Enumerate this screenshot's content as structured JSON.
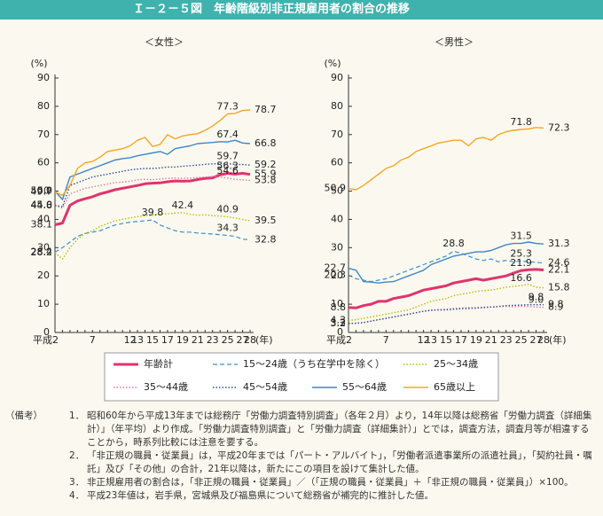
{
  "title": "Ｉ－２－５図　年齢階級別非正規雇用者の割合の推移",
  "chart_data": [
    {
      "type": "line",
      "title": "＜女性＞",
      "ylabel": "(%)",
      "xlabel": "(年)",
      "ylim": [
        0,
        90
      ],
      "yticks": [
        0,
        10,
        20,
        30,
        40,
        50,
        60,
        70,
        80,
        90
      ],
      "grid": false,
      "categories": [
        "平成2",
        null,
        null,
        null,
        null,
        "7",
        null,
        null,
        null,
        null,
        "12",
        "13",
        null,
        "15",
        null,
        "17",
        null,
        "19",
        null,
        "21",
        null,
        "23",
        null,
        "25",
        null,
        "27",
        "28"
      ],
      "series": [
        {
          "name": "年齢計",
          "color": "#e0336e",
          "style": "bold",
          "values": [
            38.1,
            38.7,
            45.0,
            46.5,
            47.3,
            48.0,
            49.0,
            49.7,
            50.5,
            51.0,
            51.5,
            52.0,
            52.6,
            52.8,
            52.9,
            53.3,
            53.6,
            53.5,
            53.6,
            54.1,
            54.5,
            54.7,
            55.8,
            56.3,
            56.0,
            56.3,
            55.9
          ],
          "value_labels": [
            "38.1",
            null,
            null,
            null,
            null,
            null,
            null,
            null,
            null,
            null,
            null,
            null,
            null,
            null,
            null,
            null,
            null,
            null,
            null,
            null,
            null,
            null,
            null,
            "56.3",
            null,
            null,
            "55.9"
          ]
        },
        {
          "name": "15～24歳（うち在学中を除く）",
          "color": "#3a8fd0",
          "style": "dashed",
          "values": [
            28.4,
            30,
            32,
            34,
            35,
            35.5,
            36,
            37,
            38,
            38.5,
            39,
            39.3,
            39.5,
            39.8,
            38,
            37,
            36,
            35.5,
            35.5,
            35.2,
            35,
            34.8,
            34.6,
            34.3,
            34,
            33,
            32.8
          ],
          "value_labels": [
            "28.4",
            null,
            null,
            null,
            null,
            null,
            null,
            null,
            null,
            null,
            null,
            null,
            null,
            "39.8",
            null,
            null,
            null,
            null,
            null,
            null,
            null,
            null,
            null,
            "34.3",
            null,
            null,
            "32.8"
          ]
        },
        {
          "name": "25～34歳",
          "color": "#b3c000",
          "style": "dotted",
          "values": [
            28.2,
            26,
            30,
            33,
            35,
            36,
            37.5,
            38.5,
            39.5,
            40,
            40.5,
            41,
            41.3,
            41.5,
            41.8,
            42,
            42.2,
            42.4,
            41.8,
            41.5,
            41.6,
            41.3,
            41.2,
            40.9,
            40.5,
            40,
            39.5
          ],
          "value_labels": [
            "28.2",
            null,
            null,
            null,
            null,
            null,
            null,
            null,
            null,
            null,
            null,
            null,
            null,
            null,
            null,
            null,
            null,
            "42.4",
            null,
            null,
            null,
            null,
            null,
            "40.9",
            null,
            null,
            "39.5"
          ]
        },
        {
          "name": "35～44歳",
          "color": "#e77aa0",
          "style": "dotted",
          "values": [
            44.8,
            44,
            49,
            50,
            51,
            51.5,
            52,
            52.5,
            53,
            53.2,
            53.5,
            54,
            54.2,
            54,
            54.3,
            54.5,
            54.6,
            54.5,
            54.6,
            54.8,
            55,
            55.2,
            55,
            54.6,
            54.2,
            54,
            53.8
          ],
          "value_labels": [
            "44.8",
            null,
            null,
            null,
            null,
            null,
            null,
            null,
            null,
            null,
            null,
            null,
            null,
            null,
            null,
            null,
            null,
            null,
            null,
            null,
            null,
            null,
            null,
            "54.6",
            null,
            null,
            "53.8"
          ]
        },
        {
          "name": "45～54歳",
          "color": "#2b4c9b",
          "style": "dotted",
          "values": [
            45.0,
            44.5,
            52,
            53,
            54,
            55,
            55.5,
            56,
            56.5,
            57,
            57.5,
            57.8,
            58,
            58,
            58.2,
            58.5,
            58.5,
            58.8,
            59,
            59.2,
            59.5,
            59.6,
            59.8,
            59.7,
            59.5,
            59.4,
            59.2
          ],
          "value_labels": [
            "45.0",
            null,
            null,
            null,
            null,
            null,
            null,
            null,
            null,
            null,
            null,
            null,
            null,
            null,
            null,
            null,
            null,
            null,
            null,
            null,
            null,
            null,
            null,
            "59.7",
            null,
            null,
            "59.2"
          ]
        },
        {
          "name": "55～64歳",
          "color": "#3f86c9",
          "style": "solid",
          "values": [
            50.0,
            47,
            55,
            56,
            57,
            58,
            59,
            60,
            61,
            61.5,
            61.8,
            62.5,
            63,
            63.5,
            64,
            63,
            65,
            65.5,
            66,
            66.8,
            67,
            67.2,
            67.5,
            67.4,
            68,
            67,
            66.8
          ],
          "value_labels": [
            "50.0",
            null,
            null,
            null,
            null,
            null,
            null,
            null,
            null,
            null,
            null,
            null,
            null,
            null,
            null,
            null,
            null,
            null,
            null,
            null,
            null,
            null,
            null,
            "67.4",
            null,
            null,
            "66.8"
          ]
        },
        {
          "name": "65歳以上",
          "color": "#f5a623",
          "style": "solid",
          "values": [
            49.7,
            48.5,
            52,
            58,
            60,
            60.5,
            62,
            64,
            64.5,
            65,
            66,
            68,
            69,
            65.8,
            66.5,
            70,
            68.5,
            69.5,
            70,
            70.3,
            71.5,
            73,
            75,
            77.3,
            77.5,
            78.5,
            78.7
          ],
          "value_labels": [
            "49.7",
            null,
            null,
            null,
            null,
            null,
            null,
            null,
            null,
            null,
            null,
            null,
            null,
            null,
            null,
            null,
            null,
            null,
            null,
            null,
            null,
            null,
            null,
            "77.3",
            null,
            null,
            "78.7"
          ]
        }
      ]
    },
    {
      "type": "line",
      "title": "＜男性＞",
      "ylabel": "(%)",
      "xlabel": "(年)",
      "ylim": [
        0,
        90
      ],
      "yticks": [
        0,
        10,
        20,
        30,
        40,
        50,
        60,
        70,
        80,
        90
      ],
      "grid": false,
      "categories": [
        "平成2",
        null,
        null,
        null,
        null,
        "7",
        null,
        null,
        null,
        null,
        "12",
        "13",
        null,
        "15",
        null,
        "17",
        null,
        "19",
        null,
        "21",
        null,
        "23",
        null,
        "25",
        null,
        "27",
        "28"
      ],
      "series": [
        {
          "color": "#e0336e",
          "style": "bold",
          "values": [
            8.8,
            8.7,
            9.5,
            10,
            11,
            11,
            12,
            12.5,
            13,
            14,
            15,
            15.5,
            16,
            16.5,
            17.5,
            18,
            18.5,
            19,
            18.5,
            19,
            19.5,
            20,
            21,
            21.9,
            22.2,
            22.3,
            22.1
          ],
          "value_labels": [
            "8.8",
            null,
            null,
            null,
            null,
            null,
            null,
            null,
            null,
            null,
            null,
            null,
            null,
            null,
            null,
            null,
            null,
            null,
            null,
            null,
            null,
            null,
            null,
            "21.9",
            null,
            null,
            "22.1"
          ]
        },
        {
          "color": "#3a8fd0",
          "style": "dashed",
          "values": [
            20.3,
            19,
            18.5,
            18,
            18.5,
            19,
            20,
            21,
            22,
            23,
            24,
            25,
            26,
            27,
            28.8,
            28,
            27,
            26,
            25.5,
            26,
            25,
            25.5,
            25,
            25.3,
            25,
            24.8,
            24.6
          ],
          "value_labels": [
            "20.3",
            null,
            null,
            null,
            null,
            null,
            null,
            null,
            null,
            null,
            null,
            null,
            null,
            null,
            "28.8",
            null,
            null,
            null,
            null,
            null,
            null,
            null,
            null,
            "25.3",
            null,
            null,
            "24.6"
          ]
        },
        {
          "color": "#b3c000",
          "style": "dotted",
          "values": [
            4.3,
            4.5,
            5,
            5.5,
            6,
            6.5,
            7,
            7.5,
            8,
            9,
            10,
            11,
            11.5,
            12,
            13,
            13.5,
            14,
            14.5,
            14.8,
            15,
            15.5,
            16,
            16.3,
            16.6,
            17,
            16,
            15.8
          ],
          "value_labels": [
            "4.3",
            null,
            null,
            null,
            null,
            null,
            null,
            null,
            null,
            null,
            null,
            null,
            null,
            null,
            null,
            null,
            null,
            null,
            null,
            null,
            null,
            null,
            null,
            "16.6",
            null,
            null,
            "15.8"
          ]
        },
        {
          "color": "#e77aa0",
          "style": "dotted",
          "values": [
            3.3,
            3.2,
            3.5,
            4,
            4.5,
            5,
            5.5,
            6,
            6.5,
            7,
            7.5,
            8,
            8,
            8.2,
            8.5,
            8.6,
            8.8,
            8.8,
            9,
            9,
            9.2,
            9.2,
            9.1,
            9.3,
            9.2,
            9.0,
            8.9
          ],
          "value_labels": [
            "3.3",
            null,
            null,
            null,
            null,
            null,
            null,
            null,
            null,
            null,
            null,
            null,
            null,
            null,
            null,
            null,
            null,
            null,
            null,
            null,
            null,
            null,
            null,
            null,
            null,
            "9.0",
            "8.9"
          ]
        },
        {
          "color": "#2b4c9b",
          "style": "dotted",
          "values": [
            3.2,
            3.3,
            3.5,
            4,
            4.5,
            5,
            5.5,
            6,
            6.5,
            7,
            7.5,
            7.8,
            8,
            8,
            8.2,
            8.4,
            8.5,
            8.6,
            8.8,
            9,
            9.2,
            9.5,
            9.6,
            9.7,
            9.8,
            9.8,
            9.8
          ],
          "value_labels": [
            "3.2",
            null,
            null,
            null,
            null,
            null,
            null,
            null,
            null,
            null,
            null,
            null,
            null,
            null,
            null,
            null,
            null,
            null,
            null,
            null,
            null,
            null,
            null,
            null,
            null,
            "9.8",
            "9.8"
          ]
        },
        {
          "color": "#3f86c9",
          "style": "solid",
          "values": [
            22.7,
            22,
            18,
            17.8,
            17.5,
            17.8,
            18,
            19,
            20,
            21,
            22,
            24,
            25,
            26,
            27,
            27.5,
            28,
            28.5,
            28.5,
            29,
            30,
            31,
            31.5,
            31.5,
            32,
            31.5,
            31.3
          ],
          "value_labels": [
            "22.7",
            null,
            null,
            null,
            null,
            null,
            null,
            null,
            null,
            null,
            null,
            null,
            null,
            null,
            null,
            null,
            null,
            null,
            null,
            null,
            null,
            null,
            null,
            "31.5",
            null,
            null,
            "31.3"
          ]
        },
        {
          "color": "#f5a623",
          "style": "solid",
          "values": [
            50.9,
            50.5,
            52,
            54,
            56,
            58,
            59,
            61,
            62,
            64,
            65,
            66,
            67,
            67.5,
            68,
            68,
            66,
            68.5,
            69,
            68,
            70,
            71,
            71.5,
            71.8,
            72,
            72.5,
            72.3
          ],
          "value_labels": [
            "50.9",
            null,
            null,
            null,
            null,
            null,
            null,
            null,
            null,
            null,
            null,
            null,
            null,
            null,
            null,
            null,
            null,
            null,
            null,
            null,
            null,
            null,
            null,
            "71.8",
            null,
            null,
            "72.3"
          ]
        }
      ]
    }
  ],
  "notes": {
    "label": "（備考）",
    "items": [
      {
        "number": "1．",
        "text": "昭和60年から平成13年までは総務庁「労働力調査特別調査」（各年２月）より，14年以降は総務省「労働力調査（詳細集計）」（年平均）より作成。「労働力調査特別調査」と「労働力調査（詳細集計）」とでは，調査方法，調査月等が相違することから，時系列比較には注意を要する。"
      },
      {
        "number": "2．",
        "text": "「非正規の職員・従業員」は，平成20年までは「パート・アルバイト」，「労働者派遣事業所の派遣社員」，「契約社員・嘱託」及び「その他」の合計，21年以降は，新たにこの項目を設けて集計した値。"
      },
      {
        "number": "3．",
        "text": "非正規雇用者の割合は，「非正規の職員・従業員」／（「正規の職員・従業員」＋「非正規の職員・従業員」）×100。"
      },
      {
        "number": "4．",
        "text": "平成23年値は，岩手県，宮城県及び福島県について総務省が補完的に推計した値。"
      }
    ]
  }
}
